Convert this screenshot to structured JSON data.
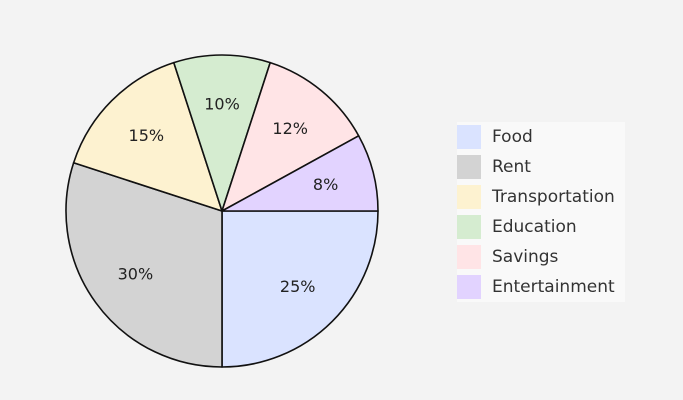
{
  "chart_data": {
    "type": "pie",
    "title": "",
    "categories": [
      "Food",
      "Rent",
      "Transportation",
      "Education",
      "Savings",
      "Entertainment"
    ],
    "values": [
      25,
      30,
      15,
      10,
      12,
      8
    ],
    "value_labels": [
      "25%",
      "30%",
      "15%",
      "10%",
      "12%",
      "8%"
    ],
    "colors": [
      "#dae3ff",
      "#d3d3d3",
      "#fdf2d0",
      "#d5ecd0",
      "#ffe4e6",
      "#e2d3ff"
    ],
    "start": "3 o'clock",
    "direction": "clockwise",
    "legend_position": "right",
    "edge_color": "#111111"
  }
}
